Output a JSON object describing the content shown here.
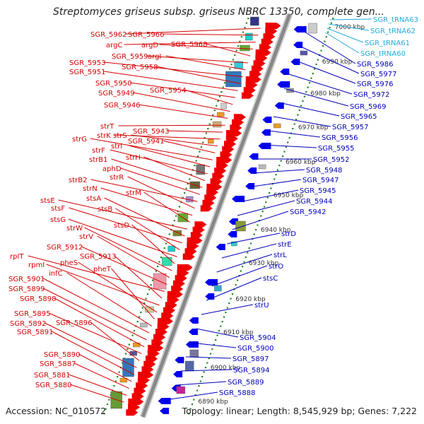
{
  "title": "Streptomyces griseus subsp. griseus NBRC 13350, complete gen...",
  "footer": {
    "accession": "Accession: NC_010572",
    "summary": "Topology: linear; Length: 8,545,929 bp; Genes: 7,222"
  },
  "colors": {
    "left_labels": "#d40000",
    "right_labels": "#0000bb",
    "rna_labels": "#22aadd",
    "forward_arrows": "#ee0000",
    "reverse_arrows": "#0000ee",
    "tick_dots": "#228822",
    "axis": "#888888"
  },
  "kbp_ticks": [
    "7000 kbp",
    "6990 kbp",
    "6980 kbp",
    "6970 kbp",
    "6960 kbp",
    "6950 kbp",
    "6940 kbp",
    "6930 kbp",
    "6920 kbp",
    "6910 kbp",
    "6900 kbp",
    "6890 kbp"
  ],
  "left_labels": [
    "SGR_5962",
    "SGR_5966",
    "argC",
    "argD",
    "SGR_5968",
    "SGR_5959",
    "argI",
    "SGR_5953",
    "SGR_5958",
    "SGR_5951",
    "SGR_5950",
    "SGR_5954",
    "SGR_5949",
    "SGR_5946",
    "strT",
    "SGR_5943",
    "strK",
    "strS",
    "SGR_5941",
    "strG",
    "strI",
    "strF",
    "strH",
    "strB1",
    "aphD",
    "strB2",
    "strR",
    "strN",
    "strM",
    "stsE",
    "stsA",
    "stsF",
    "stsB",
    "stsG",
    "stsD",
    "strW",
    "strV",
    "SGR_5912",
    "rpIT",
    "SGR_5913",
    "rpmI",
    "pheS",
    "pheT",
    "infC",
    "SGR_5901",
    "SGR_5899",
    "SGR_5898",
    "SGR_5895",
    "SGR_5896",
    "SGR_5892",
    "SGR_5891",
    "SGR_5890",
    "SGR_5887",
    "SGR_5881",
    "SGR_5880"
  ],
  "right_labels": [
    "SGR_5986",
    "SGR_5977",
    "SGR_5976",
    "SGR_5972",
    "SGR_5969",
    "SGR_5965",
    "SGR_5957",
    "SGR_5956",
    "SGR_5955",
    "SGR_5952",
    "SGR_5948",
    "SGR_5947",
    "SGR_5945",
    "SGR_5944",
    "SGR_5942",
    "strD",
    "strE",
    "strL",
    "strO",
    "stsC",
    "strU",
    "SGR_5904",
    "SGR_5900",
    "SGR_5897",
    "SGR_5894",
    "SGR_5889",
    "SGR_5888"
  ],
  "rna_labels": [
    "SGR_tRNA63",
    "SGR_tRNA62",
    "SGR_tRNA61",
    "SGR_tRNA60"
  ]
}
